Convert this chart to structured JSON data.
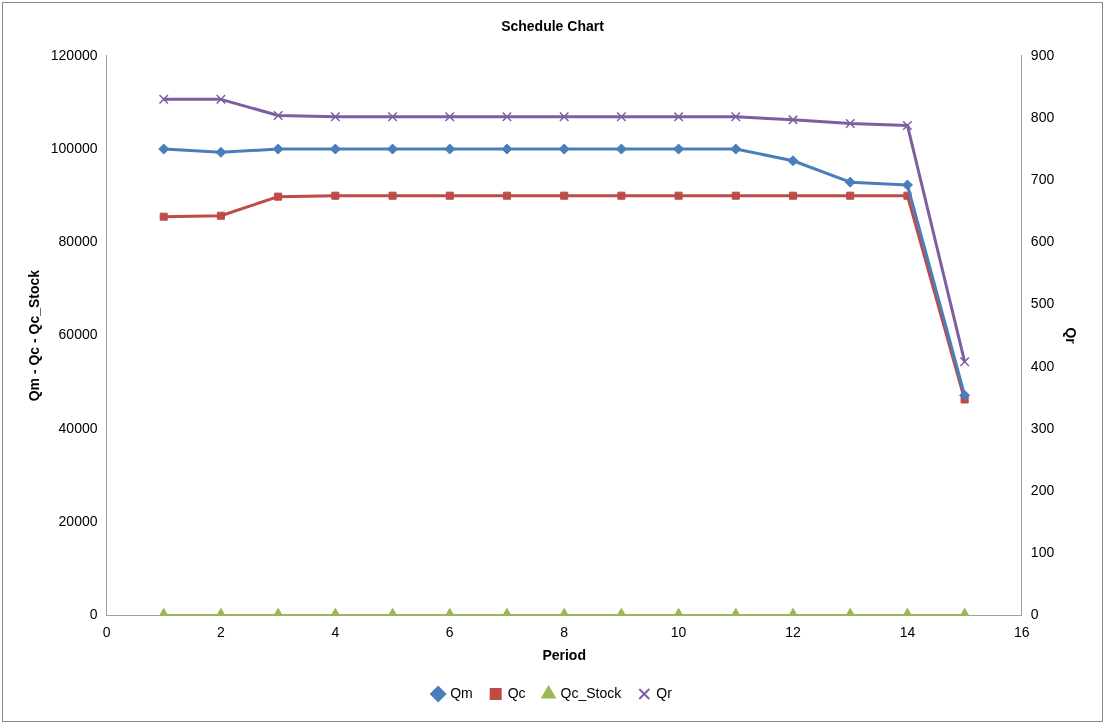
{
  "chart_data": {
    "type": "line",
    "title": "Schedule Chart",
    "xlabel": "Period",
    "ylabel": "Qm - Qc - Qc_Stock",
    "y2label": "Qr",
    "x": [
      1,
      2,
      3,
      4,
      5,
      6,
      7,
      8,
      9,
      10,
      11,
      12,
      13,
      14,
      15
    ],
    "xlim": [
      0,
      16
    ],
    "xticks": [
      0,
      2,
      4,
      6,
      8,
      10,
      12,
      14,
      16
    ],
    "ylim": [
      0,
      120000
    ],
    "yticks": [
      0,
      20000,
      40000,
      60000,
      80000,
      100000,
      120000
    ],
    "y2lim": [
      0,
      900
    ],
    "y2ticks": [
      0,
      100,
      200,
      300,
      400,
      500,
      600,
      700,
      800,
      900
    ],
    "grid": false,
    "legend": "bottom",
    "line_style": "solid",
    "series": [
      {
        "name": "Qm",
        "color": "#4a7ebb",
        "marker": "diamond",
        "values": [
          100000,
          99300,
          100000,
          100000,
          100000,
          100000,
          100000,
          100000,
          100000,
          100000,
          100000,
          97500,
          92900,
          92300,
          47200
        ]
      },
      {
        "name": "Qc",
        "color": "#be4b48",
        "marker": "square",
        "values": [
          85500,
          85700,
          89800,
          90000,
          90000,
          90000,
          90000,
          90000,
          90000,
          90000,
          90000,
          90000,
          90000,
          90000,
          46300
        ]
      },
      {
        "name": "Qc_Stock",
        "color": "#98b954",
        "marker": "triangle",
        "values": [
          0,
          0,
          0,
          0,
          0,
          0,
          0,
          0,
          0,
          0,
          0,
          0,
          0,
          0,
          0
        ]
      },
      {
        "name": "Qr",
        "color": "#7d5fa0",
        "marker": "cross",
        "axis": "y2",
        "values": [
          830,
          830,
          804,
          802,
          802,
          802,
          802,
          802,
          802,
          802,
          802,
          797,
          791,
          788,
          408
        ]
      }
    ]
  }
}
